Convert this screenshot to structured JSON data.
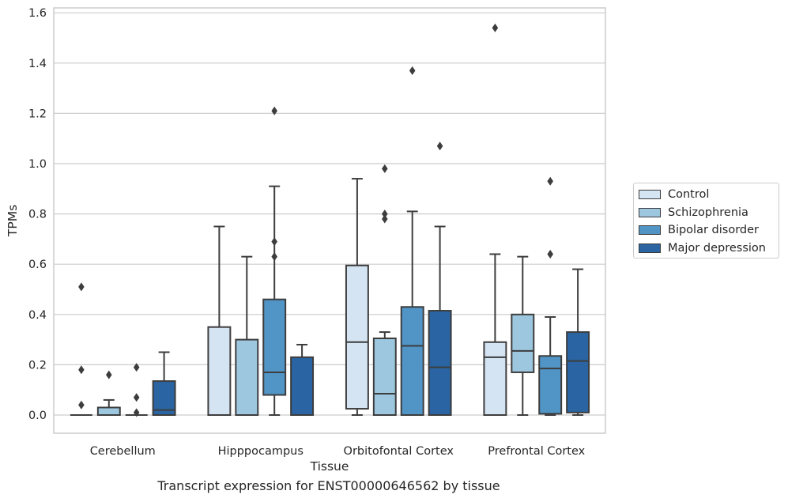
{
  "caption": "Transcript expression for ENST00000646562 by tissue",
  "chart_data": {
    "type": "box",
    "xlabel": "Tissue",
    "ylabel": "TPMs",
    "ylim": [
      -0.075,
      1.62
    ],
    "yticks": [
      0.0,
      0.2,
      0.4,
      0.6,
      0.8,
      1.0,
      1.2,
      1.4,
      1.6
    ],
    "ytick_labels": [
      "0.0",
      "0.2",
      "0.4",
      "0.6",
      "0.8",
      "1.0",
      "1.2",
      "1.4",
      "1.6"
    ],
    "grid": true,
    "legend_position": "right",
    "categories": [
      "Cerebellum",
      "Hipppocampus",
      "Orbitofontal Cortex",
      "Prefrontal Cortex"
    ],
    "series": [
      {
        "name": "Control",
        "color": "#d5e4f3",
        "boxes": [
          {
            "whislo": 0.0,
            "q1": 0.0,
            "med": 0.0,
            "q3": 0.0,
            "whishi": 0.0,
            "fliers": [
              0.51,
              0.18,
              0.04
            ]
          },
          {
            "whislo": 0.0,
            "q1": 0.0,
            "med": 0.0,
            "q3": 0.35,
            "whishi": 0.75,
            "fliers": []
          },
          {
            "whislo": 0.0,
            "q1": 0.025,
            "med": 0.29,
            "q3": 0.595,
            "whishi": 0.94,
            "fliers": []
          },
          {
            "whislo": 0.0,
            "q1": 0.0,
            "med": 0.23,
            "q3": 0.29,
            "whishi": 0.64,
            "fliers": [
              1.54
            ]
          }
        ]
      },
      {
        "name": "Schizophrenia",
        "color": "#9cc7df",
        "boxes": [
          {
            "whislo": 0.0,
            "q1": 0.0,
            "med": 0.0,
            "q3": 0.03,
            "whishi": 0.06,
            "fliers": [
              0.16
            ]
          },
          {
            "whislo": 0.0,
            "q1": 0.0,
            "med": 0.0,
            "q3": 0.3,
            "whishi": 0.63,
            "fliers": []
          },
          {
            "whislo": 0.0,
            "q1": 0.0,
            "med": 0.085,
            "q3": 0.305,
            "whishi": 0.33,
            "fliers": [
              0.98,
              0.8,
              0.78
            ]
          },
          {
            "whislo": 0.0,
            "q1": 0.17,
            "med": 0.255,
            "q3": 0.4,
            "whishi": 0.63,
            "fliers": []
          }
        ]
      },
      {
        "name": "Bipolar disorder",
        "color": "#5195c7",
        "boxes": [
          {
            "whislo": 0.0,
            "q1": 0.0,
            "med": 0.0,
            "q3": 0.0,
            "whishi": 0.0,
            "fliers": [
              0.19,
              0.07,
              0.01
            ]
          },
          {
            "whislo": 0.0,
            "q1": 0.08,
            "med": 0.17,
            "q3": 0.46,
            "whishi": 0.91,
            "fliers": [
              1.21,
              0.69,
              0.63
            ]
          },
          {
            "whislo": 0.0,
            "q1": 0.0,
            "med": 0.275,
            "q3": 0.43,
            "whishi": 0.81,
            "fliers": [
              1.37
            ]
          },
          {
            "whislo": 0.0,
            "q1": 0.005,
            "med": 0.185,
            "q3": 0.235,
            "whishi": 0.39,
            "fliers": [
              0.93,
              0.64
            ]
          }
        ]
      },
      {
        "name": "Major depression",
        "color": "#2a64a2",
        "boxes": [
          {
            "whislo": 0.0,
            "q1": 0.0,
            "med": 0.02,
            "q3": 0.135,
            "whishi": 0.25,
            "fliers": []
          },
          {
            "whislo": 0.0,
            "q1": 0.0,
            "med": 0.0,
            "q3": 0.23,
            "whishi": 0.28,
            "fliers": []
          },
          {
            "whislo": 0.0,
            "q1": 0.0,
            "med": 0.19,
            "q3": 0.415,
            "whishi": 0.75,
            "fliers": [
              1.07
            ]
          },
          {
            "whislo": 0.0,
            "q1": 0.01,
            "med": 0.215,
            "q3": 0.33,
            "whishi": 0.58,
            "fliers": []
          }
        ]
      }
    ]
  }
}
